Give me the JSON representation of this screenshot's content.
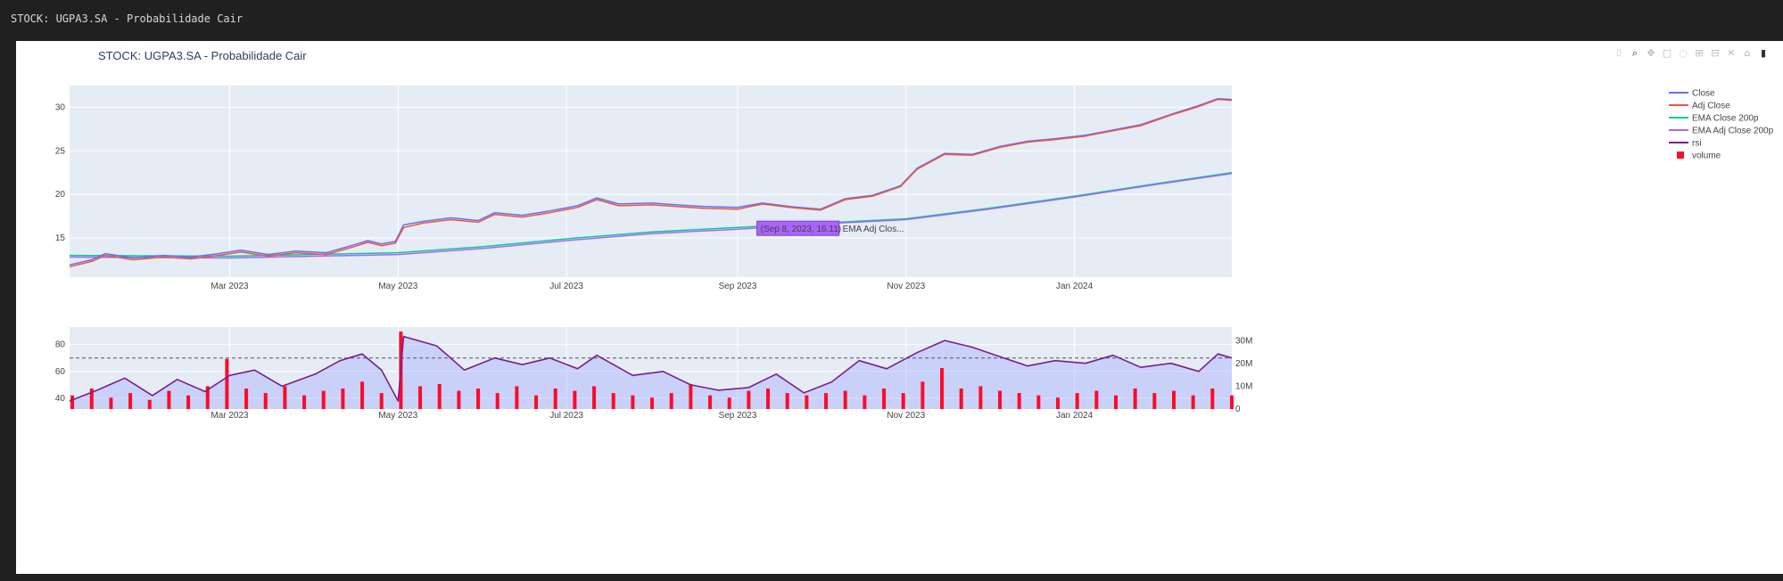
{
  "window_title": "STOCK: UGPA3.SA - Probabilidade Cair",
  "modebar": [
    {
      "name": "camera-icon",
      "glyph": "⌷"
    },
    {
      "name": "zoom-icon",
      "glyph": "⌕"
    },
    {
      "name": "pan-icon",
      "glyph": "✥"
    },
    {
      "name": "box-select-icon",
      "glyph": "▢"
    },
    {
      "name": "lasso-icon",
      "glyph": "◌"
    },
    {
      "name": "zoom-in-icon",
      "glyph": "⊞"
    },
    {
      "name": "zoom-out-icon",
      "glyph": "⊟"
    },
    {
      "name": "autoscale-icon",
      "glyph": "✕"
    },
    {
      "name": "home-icon",
      "glyph": "⌂"
    },
    {
      "name": "plotly-logo-icon",
      "glyph": "▮"
    }
  ],
  "chart_data": {
    "type": "line",
    "title": "STOCK: UGPA3.SA - Probabilidade Cair",
    "date_range": [
      "2023-01-02",
      "2024-02-27"
    ],
    "x_ticks": [
      {
        "label": "Mar 2023",
        "date": "2023-03-01"
      },
      {
        "label": "May 2023",
        "date": "2023-05-01"
      },
      {
        "label": "Jul 2023",
        "date": "2023-07-01"
      },
      {
        "label": "Sep 2023",
        "date": "2023-09-01"
      },
      {
        "label": "Nov 2023",
        "date": "2023-11-01"
      },
      {
        "label": "Jan 2024",
        "date": "2024-01-01"
      }
    ],
    "price_axis": {
      "ylim": [
        10.5,
        32.5
      ],
      "ticks": [
        15,
        20,
        25,
        30
      ]
    },
    "rsi_axis": {
      "ylim": [
        32,
        93
      ],
      "ticks": [
        40,
        60,
        80
      ],
      "overbought": 70
    },
    "volume_axis": {
      "ylim": [
        0,
        36000000
      ],
      "ticks": [
        0,
        10000000,
        20000000,
        30000000
      ],
      "tick_labels": [
        "0",
        "10M",
        "20M",
        "30M"
      ]
    },
    "legend": [
      {
        "name": "Close",
        "color": "#636efa",
        "kind": "line"
      },
      {
        "name": "Adj Close",
        "color": "#ef553b",
        "kind": "line"
      },
      {
        "name": "EMA Close 200p",
        "color": "#00cc96",
        "kind": "line"
      },
      {
        "name": "EMA Adj Close 200p",
        "color": "#ab63fa",
        "kind": "line"
      },
      {
        "name": "rsi",
        "color": "#7d1d8c",
        "kind": "line"
      },
      {
        "name": "volume",
        "color": "#ff0a2a",
        "kind": "bar"
      }
    ],
    "series": {
      "close": [
        [
          "2023-01-02",
          11.9
        ],
        [
          "2023-01-10",
          12.5
        ],
        [
          "2023-01-15",
          13.2
        ],
        [
          "2023-01-25",
          12.7
        ],
        [
          "2023-02-05",
          13.0
        ],
        [
          "2023-02-15",
          12.8
        ],
        [
          "2023-02-25",
          13.2
        ],
        [
          "2023-03-05",
          13.6
        ],
        [
          "2023-03-15",
          13.1
        ],
        [
          "2023-03-25",
          13.5
        ],
        [
          "2023-04-05",
          13.3
        ],
        [
          "2023-04-15",
          14.2
        ],
        [
          "2023-04-20",
          14.7
        ],
        [
          "2023-04-25",
          14.3
        ],
        [
          "2023-04-30",
          14.6
        ],
        [
          "2023-05-03",
          16.5
        ],
        [
          "2023-05-10",
          16.9
        ],
        [
          "2023-05-20",
          17.3
        ],
        [
          "2023-05-30",
          17.0
        ],
        [
          "2023-06-05",
          17.9
        ],
        [
          "2023-06-15",
          17.6
        ],
        [
          "2023-06-25",
          18.1
        ],
        [
          "2023-07-05",
          18.7
        ],
        [
          "2023-07-12",
          19.6
        ],
        [
          "2023-07-20",
          18.9
        ],
        [
          "2023-08-01",
          19.0
        ],
        [
          "2023-08-10",
          18.8
        ],
        [
          "2023-08-20",
          18.6
        ],
        [
          "2023-09-01",
          18.5
        ],
        [
          "2023-09-10",
          19.0
        ],
        [
          "2023-09-20",
          18.6
        ],
        [
          "2023-10-01",
          18.3
        ],
        [
          "2023-10-10",
          19.5
        ],
        [
          "2023-10-20",
          19.9
        ],
        [
          "2023-10-30",
          21.0
        ],
        [
          "2023-11-05",
          23.0
        ],
        [
          "2023-11-15",
          24.7
        ],
        [
          "2023-11-25",
          24.6
        ],
        [
          "2023-12-05",
          25.5
        ],
        [
          "2023-12-15",
          26.1
        ],
        [
          "2023-12-25",
          26.4
        ],
        [
          "2024-01-05",
          26.8
        ],
        [
          "2024-01-15",
          27.4
        ],
        [
          "2024-01-25",
          28.0
        ],
        [
          "2024-02-05",
          29.2
        ],
        [
          "2024-02-15",
          30.2
        ],
        [
          "2024-02-22",
          31.0
        ],
        [
          "2024-02-27",
          30.9
        ]
      ],
      "adj_close": [
        [
          "2023-01-02",
          11.7
        ],
        [
          "2023-01-10",
          12.3
        ],
        [
          "2023-01-15",
          13.0
        ],
        [
          "2023-01-25",
          12.5
        ],
        [
          "2023-02-05",
          12.8
        ],
        [
          "2023-02-15",
          12.6
        ],
        [
          "2023-02-25",
          13.0
        ],
        [
          "2023-03-05",
          13.4
        ],
        [
          "2023-03-15",
          12.9
        ],
        [
          "2023-03-25",
          13.3
        ],
        [
          "2023-04-05",
          13.1
        ],
        [
          "2023-04-15",
          14.0
        ],
        [
          "2023-04-20",
          14.5
        ],
        [
          "2023-04-25",
          14.1
        ],
        [
          "2023-04-30",
          14.4
        ],
        [
          "2023-05-03",
          16.2
        ],
        [
          "2023-05-10",
          16.7
        ],
        [
          "2023-05-20",
          17.1
        ],
        [
          "2023-05-30",
          16.8
        ],
        [
          "2023-06-05",
          17.7
        ],
        [
          "2023-06-15",
          17.4
        ],
        [
          "2023-06-25",
          17.9
        ],
        [
          "2023-07-05",
          18.5
        ],
        [
          "2023-07-12",
          19.4
        ],
        [
          "2023-07-20",
          18.7
        ],
        [
          "2023-08-01",
          18.8
        ],
        [
          "2023-08-10",
          18.6
        ],
        [
          "2023-08-20",
          18.4
        ],
        [
          "2023-09-01",
          18.3
        ],
        [
          "2023-09-10",
          18.9
        ],
        [
          "2023-09-20",
          18.5
        ],
        [
          "2023-10-01",
          18.2
        ],
        [
          "2023-10-10",
          19.4
        ],
        [
          "2023-10-20",
          19.8
        ],
        [
          "2023-10-30",
          20.9
        ],
        [
          "2023-11-05",
          22.9
        ],
        [
          "2023-11-15",
          24.6
        ],
        [
          "2023-11-25",
          24.5
        ],
        [
          "2023-12-05",
          25.4
        ],
        [
          "2023-12-15",
          26.0
        ],
        [
          "2023-12-25",
          26.3
        ],
        [
          "2024-01-05",
          26.7
        ],
        [
          "2024-01-15",
          27.3
        ],
        [
          "2024-01-25",
          27.9
        ],
        [
          "2024-02-05",
          29.1
        ],
        [
          "2024-02-15",
          30.1
        ],
        [
          "2024-02-22",
          30.9
        ],
        [
          "2024-02-27",
          30.8
        ]
      ],
      "ema_close": [
        [
          "2023-01-02",
          13.0
        ],
        [
          "2023-03-01",
          12.9
        ],
        [
          "2023-05-01",
          13.3
        ],
        [
          "2023-06-01",
          14.0
        ],
        [
          "2023-07-01",
          14.9
        ],
        [
          "2023-08-01",
          15.7
        ],
        [
          "2023-09-01",
          16.2
        ],
        [
          "2023-10-01",
          16.7
        ],
        [
          "2023-11-01",
          17.2
        ],
        [
          "2023-12-01",
          18.4
        ],
        [
          "2024-01-01",
          19.8
        ],
        [
          "2024-02-01",
          21.3
        ],
        [
          "2024-02-27",
          22.5
        ]
      ],
      "ema_adj_close": [
        [
          "2023-01-02",
          12.8
        ],
        [
          "2023-03-01",
          12.7
        ],
        [
          "2023-05-01",
          13.1
        ],
        [
          "2023-06-01",
          13.8
        ],
        [
          "2023-07-01",
          14.7
        ],
        [
          "2023-08-01",
          15.5
        ],
        [
          "2023-09-01",
          16.0
        ],
        [
          "2023-10-01",
          16.6
        ],
        [
          "2023-11-01",
          17.1
        ],
        [
          "2023-12-01",
          18.3
        ],
        [
          "2024-01-01",
          19.7
        ],
        [
          "2024-02-01",
          21.2
        ],
        [
          "2024-02-27",
          22.4
        ]
      ],
      "rsi": [
        [
          "2023-01-02",
          38
        ],
        [
          "2023-01-12",
          46
        ],
        [
          "2023-01-22",
          55
        ],
        [
          "2023-02-01",
          42
        ],
        [
          "2023-02-10",
          54
        ],
        [
          "2023-02-20",
          45
        ],
        [
          "2023-03-01",
          57
        ],
        [
          "2023-03-10",
          61
        ],
        [
          "2023-03-20",
          49
        ],
        [
          "2023-04-01",
          58
        ],
        [
          "2023-04-10",
          68
        ],
        [
          "2023-04-18",
          73
        ],
        [
          "2023-04-25",
          61
        ],
        [
          "2023-05-01",
          38
        ],
        [
          "2023-05-03",
          86
        ],
        [
          "2023-05-15",
          79
        ],
        [
          "2023-05-25",
          61
        ],
        [
          "2023-06-05",
          70
        ],
        [
          "2023-06-15",
          65
        ],
        [
          "2023-06-25",
          70
        ],
        [
          "2023-07-05",
          62
        ],
        [
          "2023-07-12",
          72
        ],
        [
          "2023-07-25",
          57
        ],
        [
          "2023-08-05",
          60
        ],
        [
          "2023-08-15",
          50
        ],
        [
          "2023-08-25",
          46
        ],
        [
          "2023-09-05",
          48
        ],
        [
          "2023-09-15",
          58
        ],
        [
          "2023-09-25",
          44
        ],
        [
          "2023-10-05",
          52
        ],
        [
          "2023-10-15",
          68
        ],
        [
          "2023-10-25",
          62
        ],
        [
          "2023-11-05",
          74
        ],
        [
          "2023-11-15",
          83
        ],
        [
          "2023-11-25",
          78
        ],
        [
          "2023-12-05",
          71
        ],
        [
          "2023-12-15",
          64
        ],
        [
          "2023-12-25",
          68
        ],
        [
          "2024-01-05",
          66
        ],
        [
          "2024-01-15",
          72
        ],
        [
          "2024-01-25",
          63
        ],
        [
          "2024-02-05",
          66
        ],
        [
          "2024-02-15",
          60
        ],
        [
          "2024-02-22",
          73
        ],
        [
          "2024-02-27",
          70
        ]
      ],
      "volume": [
        [
          "2023-01-03",
          6000000
        ],
        [
          "2023-01-10",
          9000000
        ],
        [
          "2023-01-17",
          5000000
        ],
        [
          "2023-01-24",
          7000000
        ],
        [
          "2023-01-31",
          4000000
        ],
        [
          "2023-02-07",
          8000000
        ],
        [
          "2023-02-14",
          6000000
        ],
        [
          "2023-02-21",
          10000000
        ],
        [
          "2023-02-28",
          22000000
        ],
        [
          "2023-03-07",
          9000000
        ],
        [
          "2023-03-14",
          7000000
        ],
        [
          "2023-03-21",
          10000000
        ],
        [
          "2023-03-28",
          6000000
        ],
        [
          "2023-04-04",
          8000000
        ],
        [
          "2023-04-11",
          9000000
        ],
        [
          "2023-04-18",
          12000000
        ],
        [
          "2023-04-25",
          7000000
        ],
        [
          "2023-05-02",
          34000000
        ],
        [
          "2023-05-09",
          10000000
        ],
        [
          "2023-05-16",
          11000000
        ],
        [
          "2023-05-23",
          8000000
        ],
        [
          "2023-05-30",
          9000000
        ],
        [
          "2023-06-06",
          7000000
        ],
        [
          "2023-06-13",
          10000000
        ],
        [
          "2023-06-20",
          6000000
        ],
        [
          "2023-06-27",
          9000000
        ],
        [
          "2023-07-04",
          8000000
        ],
        [
          "2023-07-11",
          10000000
        ],
        [
          "2023-07-18",
          7000000
        ],
        [
          "2023-07-25",
          6000000
        ],
        [
          "2023-08-01",
          5000000
        ],
        [
          "2023-08-08",
          7000000
        ],
        [
          "2023-08-15",
          11000000
        ],
        [
          "2023-08-22",
          6000000
        ],
        [
          "2023-08-29",
          5000000
        ],
        [
          "2023-09-05",
          8000000
        ],
        [
          "2023-09-12",
          9000000
        ],
        [
          "2023-09-19",
          7000000
        ],
        [
          "2023-09-26",
          6000000
        ],
        [
          "2023-10-03",
          7000000
        ],
        [
          "2023-10-10",
          8000000
        ],
        [
          "2023-10-17",
          6000000
        ],
        [
          "2023-10-24",
          9000000
        ],
        [
          "2023-10-31",
          7000000
        ],
        [
          "2023-11-07",
          12000000
        ],
        [
          "2023-11-14",
          18000000
        ],
        [
          "2023-11-21",
          9000000
        ],
        [
          "2023-11-28",
          10000000
        ],
        [
          "2023-12-05",
          8000000
        ],
        [
          "2023-12-12",
          7000000
        ],
        [
          "2023-12-19",
          6000000
        ],
        [
          "2023-12-26",
          5000000
        ],
        [
          "2024-01-02",
          7000000
        ],
        [
          "2024-01-09",
          8000000
        ],
        [
          "2024-01-16",
          6000000
        ],
        [
          "2024-01-23",
          9000000
        ],
        [
          "2024-01-30",
          7000000
        ],
        [
          "2024-02-06",
          8000000
        ],
        [
          "2024-02-13",
          6000000
        ],
        [
          "2024-02-20",
          9000000
        ],
        [
          "2024-02-27",
          6000000
        ]
      ]
    },
    "hover": {
      "label": "(Sep 8, 2023, 16.11)",
      "trace": "EMA Adj Clos...",
      "date": "2023-09-08",
      "value": 16.11,
      "color": "#ab63fa"
    }
  }
}
